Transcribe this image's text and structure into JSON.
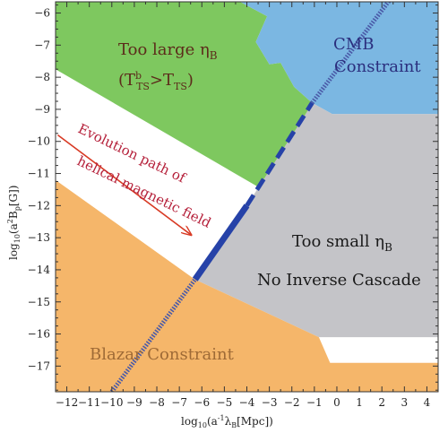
{
  "chart_data": {
    "type": "area",
    "xlabel_main": "log",
    "xlabel_sub": "10",
    "xlabel_rest": "(a",
    "xlabel_sup": "-1",
    "xlabel_tail": "λ",
    "xlabel_tail_sub": "B",
    "xlabel_tail_end": "[Mpc])",
    "ylabel_main": "log",
    "ylabel_sub": "10",
    "ylabel_rest": "(a",
    "ylabel_sup": "2",
    "ylabel_tail": "B",
    "ylabel_tail_sub": "p",
    "ylabel_tail_end": "[G])",
    "xlim": [
      -12.5,
      4.5
    ],
    "ylim": [
      -17.8,
      -5.65
    ],
    "xticks": [
      -12,
      -11,
      -10,
      -9,
      -8,
      -7,
      -6,
      -5,
      -4,
      -3,
      -2,
      -1,
      0,
      1,
      2,
      3,
      4
    ],
    "yticks": [
      -17,
      -16,
      -15,
      -14,
      -13,
      -12,
      -11,
      -10,
      -9,
      -8,
      -7,
      -6
    ],
    "grid": false,
    "regions": [
      {
        "name": "too_large",
        "color": "#7ec85f",
        "label_line1": "Too large η",
        "label_line1_sub": "B",
        "label_line2_open": "(T",
        "label_line2_sup": "b",
        "label_line2_sub": "TS",
        "label_line2_mid": ">T",
        "label_line2_sub2": "TS",
        "label_line2_close": ")",
        "label_color": "#5c2b1a",
        "polygon": [
          [
            -12.5,
            -5.65
          ],
          [
            -4.3,
            -5.65
          ],
          [
            -3.1,
            -6.1
          ],
          [
            -3.6,
            -6.9
          ],
          [
            -3.0,
            -7.6
          ],
          [
            -2.5,
            -7.55
          ],
          [
            -1.9,
            -8.3
          ],
          [
            -1.1,
            -8.8
          ],
          [
            -1.3,
            -9.05
          ],
          [
            -3.3,
            -11.5
          ],
          [
            -12.5,
            -7.75
          ]
        ]
      },
      {
        "name": "cmb",
        "color": "#7bb7e2",
        "label_line1": "CMB",
        "label_line2": "Constraint",
        "label_color": "#2b2f7e",
        "polygon": [
          [
            -4.3,
            -5.65
          ],
          [
            4.5,
            -5.65
          ],
          [
            4.5,
            -9.15
          ],
          [
            -0.2,
            -9.15
          ],
          [
            -1.1,
            -8.8
          ],
          [
            -1.9,
            -8.3
          ],
          [
            -2.5,
            -7.55
          ],
          [
            -3.0,
            -7.6
          ],
          [
            -3.6,
            -6.9
          ],
          [
            -3.1,
            -6.1
          ]
        ]
      },
      {
        "name": "too_small",
        "color": "#c4c4c8",
        "label_line1": "Too small η",
        "label_line1_sub": "B",
        "label_line2": "No Inverse Cascade",
        "label_color": "#1a1a1a",
        "polygon": [
          [
            -1.3,
            -9.05
          ],
          [
            -1.1,
            -8.8
          ],
          [
            -0.2,
            -9.15
          ],
          [
            4.5,
            -9.15
          ],
          [
            4.5,
            -16.1
          ],
          [
            -0.8,
            -16.1
          ],
          [
            -6.3,
            -14.3
          ],
          [
            -4.0,
            -12.0
          ]
        ]
      },
      {
        "name": "blazar",
        "color": "#f5b66a",
        "label": "Blazar Constraint",
        "label_color": "#9e6a36",
        "polygon": [
          [
            -12.5,
            -11.2
          ],
          [
            -6.3,
            -14.3
          ],
          [
            -0.8,
            -16.1
          ],
          [
            -0.3,
            -16.9
          ],
          [
            4.5,
            -16.9
          ],
          [
            4.5,
            -17.8
          ],
          [
            -12.5,
            -17.8
          ]
        ]
      },
      {
        "name": "allowed",
        "color": "#ffffff",
        "polygon": [
          [
            -12.5,
            -7.75
          ],
          [
            -4.0,
            -12.0
          ],
          [
            -6.3,
            -14.3
          ],
          [
            -12.5,
            -11.2
          ]
        ]
      }
    ],
    "series": [
      {
        "style": "dotted",
        "color": "#4a5aa8",
        "x": [
          -10.0,
          -6.3
        ],
        "y": [
          -17.8,
          -14.3
        ]
      },
      {
        "style": "solid-thick",
        "color": "#2642a8",
        "x": [
          -6.3,
          -4.0
        ],
        "y": [
          -14.3,
          -12.0
        ]
      },
      {
        "style": "dashed",
        "color": "#2642a8",
        "x": [
          -4.0,
          -1.1
        ],
        "y": [
          -12.0,
          -8.8
        ]
      },
      {
        "style": "dotted",
        "color": "#4a5aa8",
        "x": [
          -1.1,
          3.2
        ],
        "y": [
          -8.8,
          -4.8
        ]
      }
    ],
    "annotations": [
      {
        "text_line1": "Evolution path of",
        "text_line2": "helical magnetic field",
        "color": "#b5203a",
        "arrow_from": [
          -12.4,
          -9.8
        ],
        "arrow_to": [
          -6.5,
          -12.9
        ]
      }
    ]
  }
}
